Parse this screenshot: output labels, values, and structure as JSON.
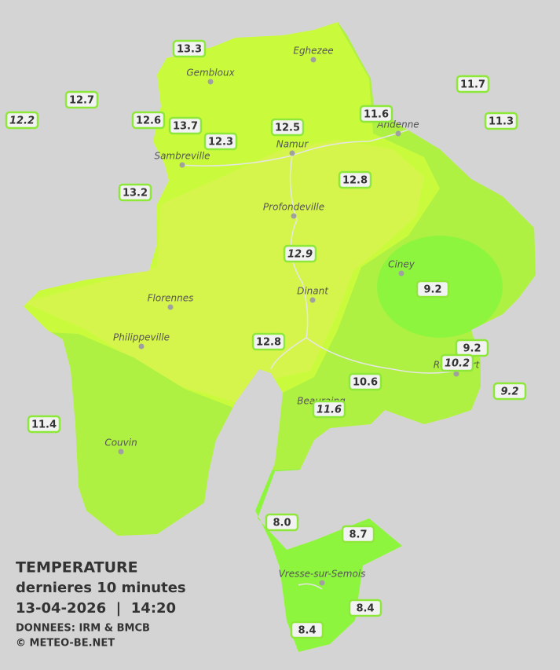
{
  "legend": {
    "title": "TEMPERATURE",
    "subtitle": "dernieres 10 minutes",
    "timestamp": "13-04-2026  |  14:20",
    "source": "DONNEES: IRM & BMCB",
    "copyright": "© METEO-BE.NET"
  },
  "towns": [
    "Eghezee",
    "Gembloux",
    "Andenne",
    "Namur",
    "Sambreville",
    "Profondeville",
    "Ciney",
    "Dinant",
    "Florennes",
    "Philippeville",
    "Rochefort",
    "Beauraing",
    "Couvin",
    "Vresse-sur-Semois"
  ],
  "stations": [
    {
      "label": "13.3",
      "italic": false
    },
    {
      "label": "12.7",
      "italic": false
    },
    {
      "label": "12.2",
      "italic": true
    },
    {
      "label": "12.6",
      "italic": false
    },
    {
      "label": "13.7",
      "italic": false
    },
    {
      "label": "12.3",
      "italic": false
    },
    {
      "label": "12.5",
      "italic": false
    },
    {
      "label": "11.6",
      "italic": false
    },
    {
      "label": "11.7",
      "italic": false
    },
    {
      "label": "11.3",
      "italic": false
    },
    {
      "label": "13.2",
      "italic": false
    },
    {
      "label": "12.8",
      "italic": false
    },
    {
      "label": "12.9",
      "italic": true
    },
    {
      "label": "9.2",
      "italic": false
    },
    {
      "label": "12.8",
      "italic": false
    },
    {
      "label": "9.2",
      "italic": false
    },
    {
      "label": "10.2",
      "italic": true
    },
    {
      "label": "10.6",
      "italic": false
    },
    {
      "label": "9.2",
      "italic": true
    },
    {
      "label": "11.6",
      "italic": true
    },
    {
      "label": "11.4",
      "italic": false
    },
    {
      "label": "8.0",
      "italic": false
    },
    {
      "label": "8.7",
      "italic": false
    },
    {
      "label": "8.4",
      "italic": false
    },
    {
      "label": "8.4",
      "italic": false
    }
  ]
}
